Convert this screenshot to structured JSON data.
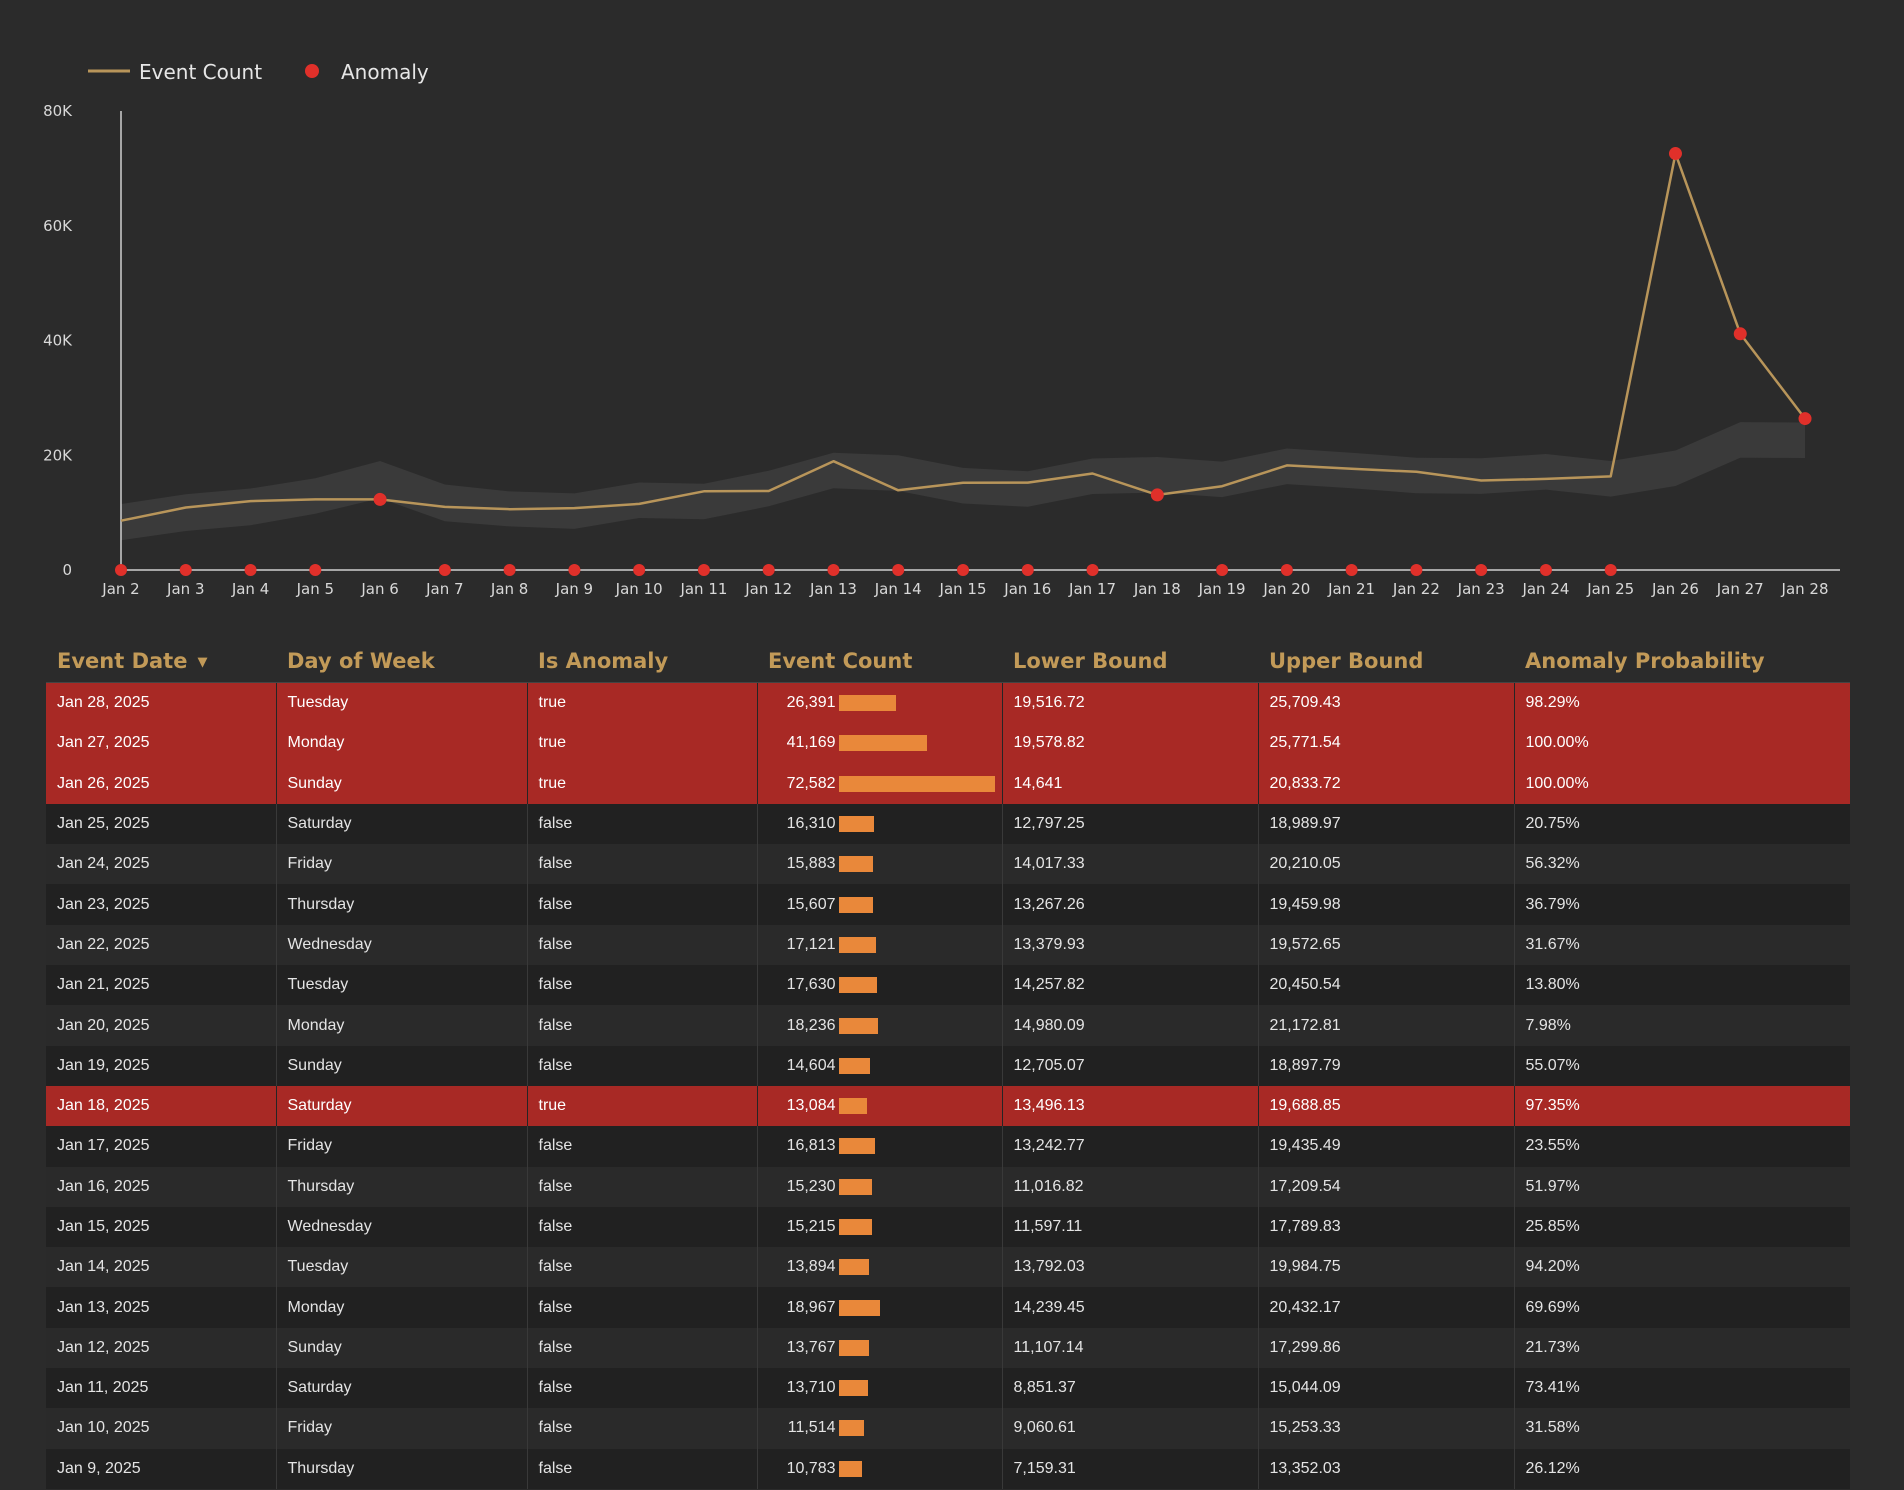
{
  "colors": {
    "background": "#2b2b2b",
    "line": "#b8955a",
    "anomaly_dot": "#e0302a",
    "band": "#3a3a3a",
    "header_text": "#c29a58",
    "anomaly_row": "#a82925",
    "bar": "#e9883a"
  },
  "chart_data": {
    "type": "line",
    "legend": {
      "placement": "top-left",
      "items": [
        {
          "label": "Event Count",
          "symbol": "line"
        },
        {
          "label": "Anomaly",
          "symbol": "dot"
        }
      ]
    },
    "ylim": [
      0,
      80000
    ],
    "yticks": [
      {
        "value": 0,
        "label": "0"
      },
      {
        "value": 20000,
        "label": "20K"
      },
      {
        "value": 40000,
        "label": "40K"
      },
      {
        "value": 60000,
        "label": "60K"
      },
      {
        "value": 80000,
        "label": "80K"
      }
    ],
    "x": [
      "Jan 2",
      "Jan 3",
      "Jan 4",
      "Jan 5",
      "Jan 6",
      "Jan 7",
      "Jan 8",
      "Jan 9",
      "Jan 10",
      "Jan 11",
      "Jan 12",
      "Jan 13",
      "Jan 14",
      "Jan 15",
      "Jan 16",
      "Jan 17",
      "Jan 18",
      "Jan 19",
      "Jan 20",
      "Jan 21",
      "Jan 22",
      "Jan 23",
      "Jan 24",
      "Jan 25",
      "Jan 26",
      "Jan 27",
      "Jan 28"
    ],
    "series": [
      {
        "name": "Event Count",
        "values": [
          8600,
          10900,
          12000,
          12300,
          12300,
          11000,
          10600,
          10783,
          11514,
          13710,
          13767,
          18967,
          13894,
          15215,
          15230,
          16813,
          13084,
          14604,
          18236,
          17630,
          17121,
          15607,
          15883,
          16310,
          72582,
          41169,
          26391
        ]
      }
    ],
    "band": {
      "lower": [
        5200,
        6800,
        7800,
        9800,
        12500,
        8500,
        7600,
        7159,
        9061,
        8851,
        11107,
        14239,
        13792,
        11597,
        11017,
        13243,
        13496,
        12705,
        14980,
        14258,
        13380,
        13267,
        14017,
        12797,
        14641,
        19579,
        19517
      ],
      "upper": [
        11500,
        13200,
        14200,
        16000,
        19000,
        14900,
        13700,
        13352,
        15253,
        15044,
        17300,
        20432,
        19985,
        17790,
        17210,
        19435,
        19689,
        18898,
        21173,
        20451,
        19573,
        19460,
        20210,
        18990,
        20834,
        25772,
        25709
      ]
    },
    "anomaly_markers": [
      {
        "x": "Jan 6",
        "y": 12300
      },
      {
        "x": "Jan 18",
        "y": 13084
      },
      {
        "x": "Jan 26",
        "y": 72582
      },
      {
        "x": "Jan 27",
        "y": 41169
      },
      {
        "x": "Jan 28",
        "y": 26391
      }
    ],
    "baseline_markers": [
      "Jan 2",
      "Jan 3",
      "Jan 4",
      "Jan 5",
      "Jan 7",
      "Jan 8",
      "Jan 9",
      "Jan 10",
      "Jan 11",
      "Jan 12",
      "Jan 13",
      "Jan 14",
      "Jan 15",
      "Jan 16",
      "Jan 17",
      "Jan 19",
      "Jan 20",
      "Jan 21",
      "Jan 22",
      "Jan 23",
      "Jan 24",
      "Jan 25"
    ],
    "grid": false
  },
  "table": {
    "columns": [
      {
        "label": "Event Date",
        "sorted": "desc"
      },
      {
        "label": "Day of Week"
      },
      {
        "label": "Is Anomaly"
      },
      {
        "label": "Event Count"
      },
      {
        "label": "Lower Bound"
      },
      {
        "label": "Upper Bound"
      },
      {
        "label": "Anomaly Probability"
      }
    ],
    "bar_max": 72582,
    "rows": [
      {
        "date": "Jan 28, 2025",
        "day": "Tuesday",
        "anomaly": "true",
        "count": "26,391",
        "count_value": 26391,
        "lower": "19,516.72",
        "upper": "25,709.43",
        "prob": "98.29%"
      },
      {
        "date": "Jan 27, 2025",
        "day": "Monday",
        "anomaly": "true",
        "count": "41,169",
        "count_value": 41169,
        "lower": "19,578.82",
        "upper": "25,771.54",
        "prob": "100.00%"
      },
      {
        "date": "Jan 26, 2025",
        "day": "Sunday",
        "anomaly": "true",
        "count": "72,582",
        "count_value": 72582,
        "lower": "14,641",
        "upper": "20,833.72",
        "prob": "100.00%"
      },
      {
        "date": "Jan 25, 2025",
        "day": "Saturday",
        "anomaly": "false",
        "count": "16,310",
        "count_value": 16310,
        "lower": "12,797.25",
        "upper": "18,989.97",
        "prob": "20.75%"
      },
      {
        "date": "Jan 24, 2025",
        "day": "Friday",
        "anomaly": "false",
        "count": "15,883",
        "count_value": 15883,
        "lower": "14,017.33",
        "upper": "20,210.05",
        "prob": "56.32%"
      },
      {
        "date": "Jan 23, 2025",
        "day": "Thursday",
        "anomaly": "false",
        "count": "15,607",
        "count_value": 15607,
        "lower": "13,267.26",
        "upper": "19,459.98",
        "prob": "36.79%"
      },
      {
        "date": "Jan 22, 2025",
        "day": "Wednesday",
        "anomaly": "false",
        "count": "17,121",
        "count_value": 17121,
        "lower": "13,379.93",
        "upper": "19,572.65",
        "prob": "31.67%"
      },
      {
        "date": "Jan 21, 2025",
        "day": "Tuesday",
        "anomaly": "false",
        "count": "17,630",
        "count_value": 17630,
        "lower": "14,257.82",
        "upper": "20,450.54",
        "prob": "13.80%"
      },
      {
        "date": "Jan 20, 2025",
        "day": "Monday",
        "anomaly": "false",
        "count": "18,236",
        "count_value": 18236,
        "lower": "14,980.09",
        "upper": "21,172.81",
        "prob": "7.98%"
      },
      {
        "date": "Jan 19, 2025",
        "day": "Sunday",
        "anomaly": "false",
        "count": "14,604",
        "count_value": 14604,
        "lower": "12,705.07",
        "upper": "18,897.79",
        "prob": "55.07%"
      },
      {
        "date": "Jan 18, 2025",
        "day": "Saturday",
        "anomaly": "true",
        "count": "13,084",
        "count_value": 13084,
        "lower": "13,496.13",
        "upper": "19,688.85",
        "prob": "97.35%"
      },
      {
        "date": "Jan 17, 2025",
        "day": "Friday",
        "anomaly": "false",
        "count": "16,813",
        "count_value": 16813,
        "lower": "13,242.77",
        "upper": "19,435.49",
        "prob": "23.55%"
      },
      {
        "date": "Jan 16, 2025",
        "day": "Thursday",
        "anomaly": "false",
        "count": "15,230",
        "count_value": 15230,
        "lower": "11,016.82",
        "upper": "17,209.54",
        "prob": "51.97%"
      },
      {
        "date": "Jan 15, 2025",
        "day": "Wednesday",
        "anomaly": "false",
        "count": "15,215",
        "count_value": 15215,
        "lower": "11,597.11",
        "upper": "17,789.83",
        "prob": "25.85%"
      },
      {
        "date": "Jan 14, 2025",
        "day": "Tuesday",
        "anomaly": "false",
        "count": "13,894",
        "count_value": 13894,
        "lower": "13,792.03",
        "upper": "19,984.75",
        "prob": "94.20%"
      },
      {
        "date": "Jan 13, 2025",
        "day": "Monday",
        "anomaly": "false",
        "count": "18,967",
        "count_value": 18967,
        "lower": "14,239.45",
        "upper": "20,432.17",
        "prob": "69.69%"
      },
      {
        "date": "Jan 12, 2025",
        "day": "Sunday",
        "anomaly": "false",
        "count": "13,767",
        "count_value": 13767,
        "lower": "11,107.14",
        "upper": "17,299.86",
        "prob": "21.73%"
      },
      {
        "date": "Jan 11, 2025",
        "day": "Saturday",
        "anomaly": "false",
        "count": "13,710",
        "count_value": 13710,
        "lower": "8,851.37",
        "upper": "15,044.09",
        "prob": "73.41%"
      },
      {
        "date": "Jan 10, 2025",
        "day": "Friday",
        "anomaly": "false",
        "count": "11,514",
        "count_value": 11514,
        "lower": "9,060.61",
        "upper": "15,253.33",
        "prob": "31.58%"
      },
      {
        "date": "Jan 9, 2025",
        "day": "Thursday",
        "anomaly": "false",
        "count": "10,783",
        "count_value": 10783,
        "lower": "7,159.31",
        "upper": "13,352.03",
        "prob": "26.12%"
      }
    ]
  }
}
